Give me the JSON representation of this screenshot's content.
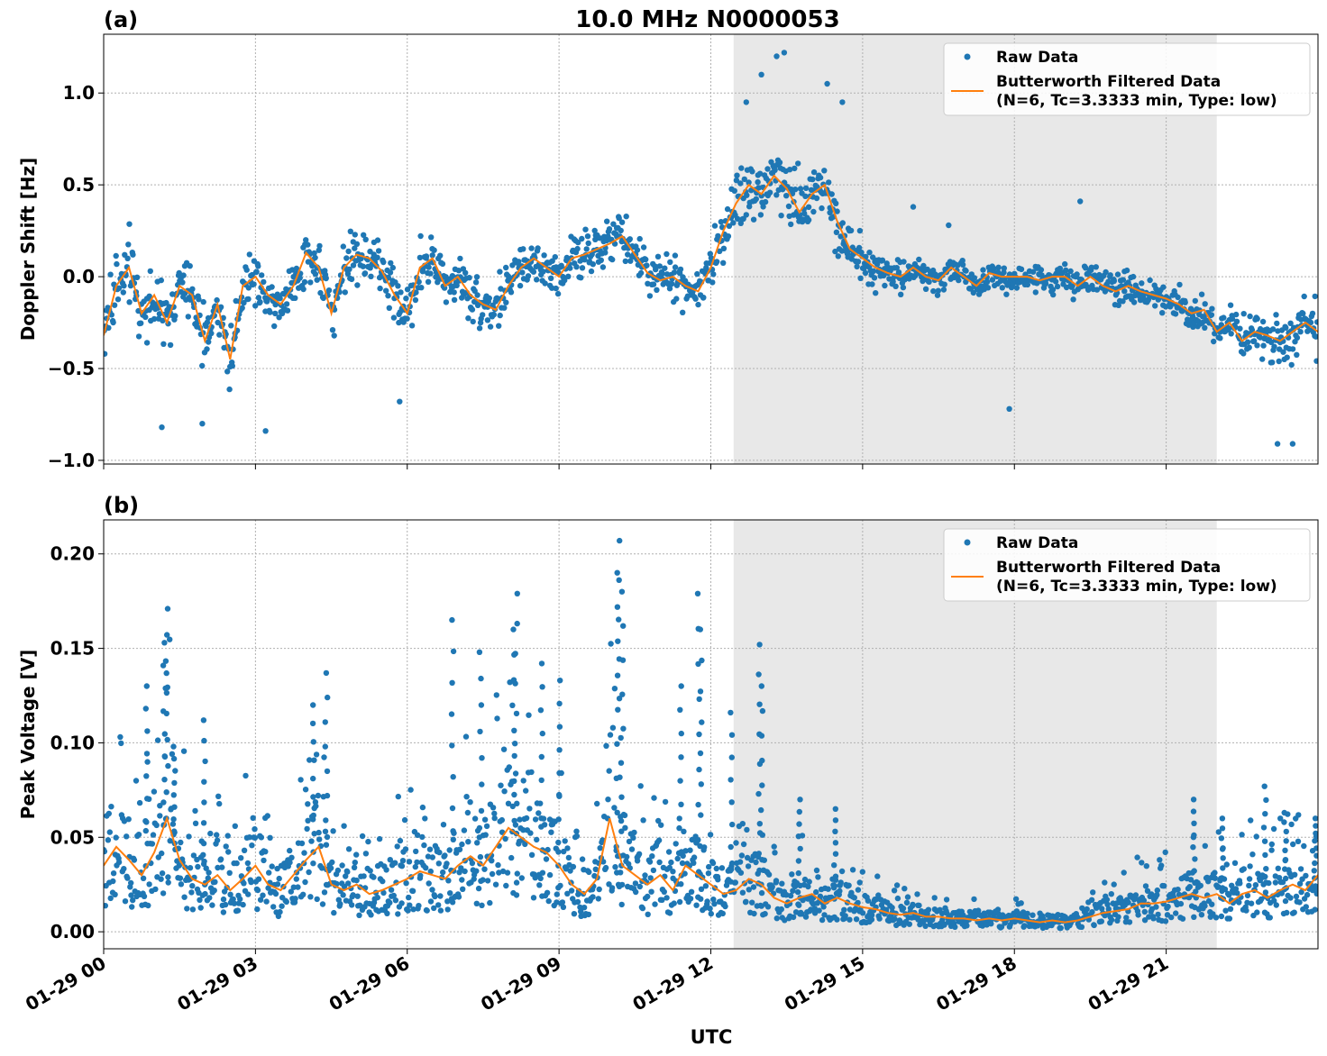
{
  "figure": {
    "title": "10.0 MHz N0000053",
    "xlabel": "UTC",
    "x_tick_labels": [
      "01-29 00",
      "01-29 03",
      "01-29 06",
      "01-29 09",
      "01-29 12",
      "01-29 15",
      "01-29 18",
      "01-29 21"
    ],
    "colors": {
      "raw": "#1f77b4",
      "filtered": "#ff7f0e",
      "shade": "#e8e8e8",
      "grid": "#b0b0b0"
    }
  },
  "chart_data": [
    {
      "type": "scatter",
      "panel_label": "(a)",
      "ylabel": "Doppler Shift [Hz]",
      "x_unit": "hours UTC on 01-29",
      "xlim": [
        "01-29 00:00",
        "01-30 00:00"
      ],
      "ylim": [
        -1.02,
        1.32
      ],
      "y_ticks": [
        -1.0,
        -0.5,
        0.0,
        0.5,
        1.0
      ],
      "y_tick_labels": [
        "−1.0",
        "−0.5",
        "0.0",
        "0.5",
        "1.0"
      ],
      "shaded_region": [
        "01-29 12:27",
        "01-29 22:00"
      ],
      "grid": true,
      "legend_position": "top-right",
      "legend": [
        "Raw Data",
        "Butterworth Filtered Data",
        "(N=6, Tc=3.3333 min, Type: low)"
      ],
      "series": [
        {
          "name": "Butterworth Filtered Data",
          "kind": "line",
          "x": [
            0,
            0.25,
            0.5,
            0.75,
            1,
            1.25,
            1.5,
            1.75,
            2,
            2.25,
            2.5,
            2.75,
            3,
            3.25,
            3.5,
            3.75,
            4,
            4.25,
            4.5,
            4.75,
            5,
            5.25,
            5.5,
            5.75,
            6,
            6.25,
            6.5,
            6.75,
            7,
            7.25,
            7.5,
            7.75,
            8,
            8.25,
            8.5,
            8.75,
            9,
            9.25,
            9.5,
            9.75,
            10,
            10.25,
            10.5,
            10.75,
            11,
            11.25,
            11.5,
            11.75,
            12,
            12.25,
            12.5,
            12.75,
            13,
            13.25,
            13.5,
            13.75,
            14,
            14.25,
            14.5,
            14.75,
            15,
            15.25,
            15.5,
            15.75,
            16,
            16.25,
            16.5,
            16.75,
            17,
            17.25,
            17.5,
            17.75,
            18,
            18.25,
            18.5,
            18.75,
            19,
            19.25,
            19.5,
            19.75,
            20,
            20.25,
            20.5,
            20.75,
            21,
            21.25,
            21.5,
            21.75,
            22,
            22.25,
            22.5,
            22.75,
            23,
            23.25,
            23.5,
            23.75,
            24
          ],
          "y": [
            -0.32,
            -0.05,
            0.05,
            -0.2,
            -0.1,
            -0.25,
            -0.05,
            -0.1,
            -0.35,
            -0.15,
            -0.45,
            -0.05,
            0.0,
            -0.1,
            -0.15,
            -0.05,
            0.13,
            0.05,
            -0.2,
            0.05,
            0.12,
            0.1,
            0.03,
            -0.1,
            -0.2,
            0.05,
            0.1,
            -0.05,
            0.0,
            -0.1,
            -0.15,
            -0.18,
            -0.05,
            0.05,
            0.1,
            0.05,
            0.0,
            0.1,
            0.12,
            0.15,
            0.18,
            0.22,
            0.12,
            0.02,
            -0.02,
            0.0,
            -0.05,
            -0.08,
            0.05,
            0.25,
            0.4,
            0.5,
            0.45,
            0.55,
            0.48,
            0.35,
            0.45,
            0.5,
            0.3,
            0.15,
            0.1,
            0.05,
            0.02,
            0.0,
            0.05,
            0.0,
            -0.02,
            0.05,
            0.0,
            -0.05,
            0.02,
            0.0,
            0.0,
            0.0,
            -0.02,
            0.0,
            0.0,
            -0.05,
            0.0,
            -0.05,
            -0.08,
            -0.05,
            -0.08,
            -0.1,
            -0.12,
            -0.15,
            -0.2,
            -0.18,
            -0.3,
            -0.25,
            -0.35,
            -0.3,
            -0.32,
            -0.35,
            -0.3,
            -0.25,
            -0.3
          ]
        },
        {
          "name": "Raw Data",
          "kind": "scatter",
          "spread_vs_filtered": [
            [
              0,
              0.3
            ],
            [
              12,
              0.2
            ],
            [
              12.5,
              0.35
            ],
            [
              14.5,
              0.3
            ],
            [
              16,
              0.12
            ],
            [
              21,
              0.15
            ],
            [
              24,
              0.25
            ]
          ],
          "outliers": [
            [
              13.3,
              1.2
            ],
            [
              13.45,
              1.22
            ],
            [
              14.3,
              1.05
            ],
            [
              14.6,
              0.95
            ],
            [
              13.0,
              1.1
            ],
            [
              12.7,
              0.95
            ],
            [
              17.9,
              -0.72
            ],
            [
              19.3,
              0.41
            ],
            [
              23.5,
              -0.91
            ],
            [
              23.2,
              -0.91
            ],
            [
              1.15,
              -0.82
            ],
            [
              3.2,
              -0.84
            ],
            [
              5.85,
              -0.68
            ],
            [
              1.95,
              -0.8
            ],
            [
              16.0,
              0.38
            ],
            [
              16.7,
              0.28
            ]
          ]
        }
      ]
    },
    {
      "type": "scatter",
      "panel_label": "(b)",
      "ylabel": "Peak Voltage [V]",
      "x_unit": "hours UTC on 01-29",
      "xlim": [
        "01-29 00:00",
        "01-30 00:00"
      ],
      "ylim": [
        -0.009,
        0.218
      ],
      "y_ticks": [
        0.0,
        0.05,
        0.1,
        0.15,
        0.2
      ],
      "y_tick_labels": [
        "0.00",
        "0.05",
        "0.10",
        "0.15",
        "0.20"
      ],
      "shaded_region": [
        "01-29 12:27",
        "01-29 22:00"
      ],
      "grid": true,
      "legend_position": "top-right",
      "legend": [
        "Raw Data",
        "Butterworth Filtered Data",
        "(N=6, Tc=3.3333 min, Type: low)"
      ],
      "series": [
        {
          "name": "Butterworth Filtered Data",
          "kind": "line",
          "x": [
            0,
            0.25,
            0.5,
            0.75,
            1,
            1.25,
            1.5,
            1.75,
            2,
            2.25,
            2.5,
            2.75,
            3,
            3.25,
            3.5,
            3.75,
            4,
            4.25,
            4.5,
            4.75,
            5,
            5.25,
            5.5,
            5.75,
            6,
            6.25,
            6.5,
            6.75,
            7,
            7.25,
            7.5,
            7.75,
            8,
            8.25,
            8.5,
            8.75,
            9,
            9.25,
            9.5,
            9.75,
            10,
            10.25,
            10.5,
            10.75,
            11,
            11.25,
            11.5,
            11.75,
            12,
            12.25,
            12.5,
            12.75,
            13,
            13.25,
            13.5,
            13.75,
            14,
            14.25,
            14.5,
            14.75,
            15,
            15.25,
            15.5,
            15.75,
            16,
            16.25,
            16.5,
            16.75,
            17,
            17.25,
            17.5,
            17.75,
            18,
            18.25,
            18.5,
            18.75,
            19,
            19.25,
            19.5,
            19.75,
            20,
            20.25,
            20.5,
            20.75,
            21,
            21.25,
            21.5,
            21.75,
            22,
            22.25,
            22.5,
            22.75,
            23,
            23.25,
            23.5,
            23.75,
            24
          ],
          "y": [
            0.035,
            0.045,
            0.038,
            0.03,
            0.042,
            0.06,
            0.038,
            0.028,
            0.025,
            0.03,
            0.022,
            0.028,
            0.035,
            0.025,
            0.022,
            0.03,
            0.038,
            0.045,
            0.025,
            0.022,
            0.025,
            0.02,
            0.022,
            0.025,
            0.028,
            0.032,
            0.03,
            0.028,
            0.035,
            0.04,
            0.035,
            0.045,
            0.055,
            0.05,
            0.045,
            0.042,
            0.035,
            0.025,
            0.02,
            0.028,
            0.06,
            0.035,
            0.03,
            0.025,
            0.03,
            0.022,
            0.035,
            0.03,
            0.025,
            0.02,
            0.022,
            0.028,
            0.025,
            0.018,
            0.015,
            0.018,
            0.02,
            0.015,
            0.018,
            0.015,
            0.013,
            0.012,
            0.01,
            0.009,
            0.01,
            0.008,
            0.008,
            0.007,
            0.007,
            0.006,
            0.007,
            0.006,
            0.007,
            0.006,
            0.005,
            0.006,
            0.005,
            0.006,
            0.008,
            0.01,
            0.011,
            0.012,
            0.015,
            0.015,
            0.016,
            0.018,
            0.02,
            0.018,
            0.02,
            0.015,
            0.02,
            0.022,
            0.018,
            0.022,
            0.025,
            0.022,
            0.03
          ]
        },
        {
          "name": "Raw Data",
          "kind": "scatter",
          "spikes": [
            [
              1.25,
              0.171
            ],
            [
              1.2,
              0.153
            ],
            [
              0.85,
              0.13
            ],
            [
              1.4,
              0.098
            ],
            [
              2.0,
              0.112
            ],
            [
              4.4,
              0.137
            ],
            [
              4.15,
              0.12
            ],
            [
              6.9,
              0.165
            ],
            [
              7.45,
              0.148
            ],
            [
              8.15,
              0.179
            ],
            [
              8.1,
              0.16
            ],
            [
              8.65,
              0.142
            ],
            [
              9.0,
              0.133
            ],
            [
              10.2,
              0.207
            ],
            [
              10.15,
              0.19
            ],
            [
              10.25,
              0.18
            ],
            [
              11.4,
              0.13
            ],
            [
              11.75,
              0.179
            ],
            [
              11.8,
              0.16
            ],
            [
              12.4,
              0.116
            ],
            [
              12.95,
              0.152
            ],
            [
              13.0,
              0.13
            ],
            [
              13.75,
              0.07
            ],
            [
              14.45,
              0.065
            ],
            [
              21.55,
              0.07
            ],
            [
              22.1,
              0.06
            ],
            [
              22.95,
              0.077
            ],
            [
              23.35,
              0.063
            ],
            [
              23.95,
              0.06
            ]
          ]
        }
      ]
    }
  ]
}
